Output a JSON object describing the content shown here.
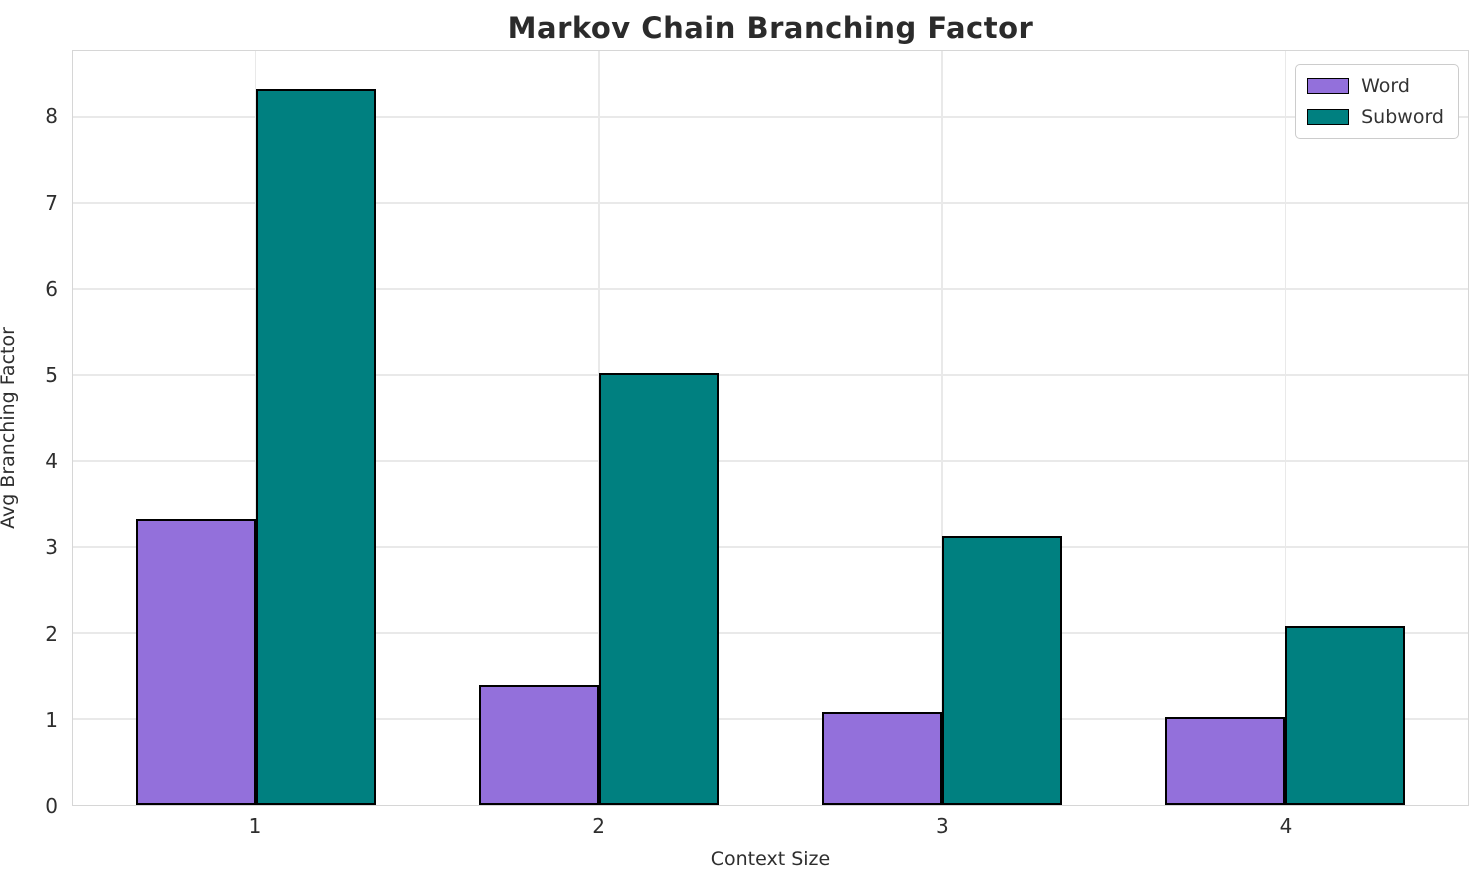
{
  "chart_data": {
    "type": "bar",
    "title": "Markov Chain Branching Factor",
    "xlabel": "Context Size",
    "ylabel": "Avg Branching Factor",
    "categories": [
      "1",
      "2",
      "3",
      "4"
    ],
    "series": [
      {
        "name": "Word",
        "color": "#9370DB",
        "values": [
          3.33,
          1.4,
          1.08,
          1.02
        ]
      },
      {
        "name": "Subword",
        "color": "#008080",
        "values": [
          8.33,
          5.02,
          3.13,
          2.08
        ]
      }
    ],
    "ylim": [
      0,
      8.77
    ],
    "yticks": [
      0,
      1,
      2,
      3,
      4,
      5,
      6,
      7,
      8
    ],
    "grid": true,
    "legend_position": "upper right",
    "bar_edge_color": "#000000",
    "grid_color": "#e9e9e9",
    "spine_color": "#d6d6d6",
    "text_color": "#2e2e2e"
  }
}
